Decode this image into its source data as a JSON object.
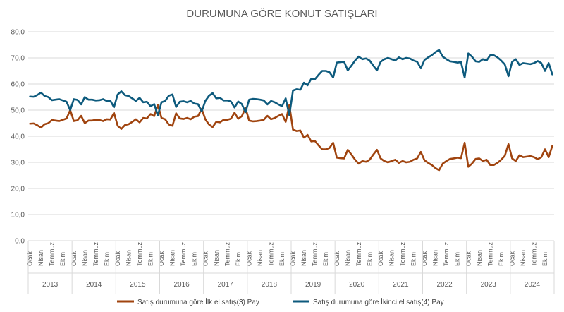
{
  "chart_data": {
    "type": "line",
    "title": "DURUMUNA GÖRE KONUT SATIŞLARI",
    "ylim": [
      0,
      80
    ],
    "yticks": [
      "0,0",
      "10,0",
      "20,0",
      "30,0",
      "40,0",
      "50,0",
      "60,0",
      "70,0",
      "80,0"
    ],
    "years": [
      "2013",
      "2014",
      "2015",
      "2016",
      "2017",
      "2018",
      "2019",
      "2020",
      "2021",
      "2022",
      "2023",
      "2024"
    ],
    "month_labels": [
      "Ocak",
      "Nisan",
      "Temmuz",
      "Ekim"
    ],
    "month_label_offsets": [
      0,
      3,
      6,
      9
    ],
    "grid": true,
    "legend_position": "bottom",
    "series": [
      {
        "name": "Satış durumuna göre İlk el satış(3) Pay",
        "color": "#a0440f",
        "values": [
          44.8,
          44.9,
          44.2,
          43.3,
          44.6,
          45.0,
          46.2,
          46.0,
          45.8,
          46.3,
          46.8,
          50.0,
          45.8,
          46.1,
          47.8,
          45.0,
          46.0,
          46.0,
          46.3,
          46.2,
          45.8,
          46.5,
          46.4,
          48.9,
          44.0,
          42.8,
          44.3,
          44.6,
          45.5,
          46.5,
          45.3,
          47.0,
          46.8,
          48.5,
          47.7,
          52.0,
          47.0,
          46.5,
          44.5,
          44.0,
          48.8,
          46.8,
          46.6,
          47.0,
          46.5,
          47.5,
          47.7,
          50.5,
          46.5,
          44.5,
          43.5,
          45.5,
          45.3,
          46.3,
          46.3,
          46.7,
          49.0,
          46.7,
          47.7,
          50.8,
          46.0,
          45.7,
          45.8,
          46.0,
          46.3,
          47.8,
          46.5,
          47.0,
          47.8,
          48.5,
          45.5,
          52.0,
          42.5,
          42.0,
          42.2,
          39.5,
          40.5,
          38.0,
          38.2,
          36.5,
          35.0,
          35.0,
          35.5,
          37.5,
          31.8,
          31.6,
          31.5,
          34.8,
          33.0,
          31.0,
          29.5,
          30.5,
          30.2,
          31.0,
          33.0,
          34.8,
          31.5,
          30.5,
          30.0,
          30.5,
          31.0,
          29.8,
          30.5,
          30.0,
          30.2,
          31.0,
          31.5,
          34.0,
          30.8,
          29.8,
          29.0,
          27.8,
          27.0,
          29.5,
          30.5,
          31.3,
          31.5,
          31.8,
          31.6,
          37.5,
          28.3,
          29.5,
          31.3,
          31.5,
          30.5,
          31.0,
          29.0,
          29.0,
          29.8,
          31.0,
          32.5,
          37.0,
          31.5,
          30.5,
          32.7,
          32.0,
          32.2,
          32.4,
          32.0,
          31.2,
          32.0,
          35.0,
          32.0,
          36.3
        ]
      },
      {
        "name": "Satış durumuna göre İkinci el satış(4) Pay",
        "color": "#0d5a7d",
        "values": [
          55.2,
          55.1,
          55.8,
          56.7,
          55.4,
          55.0,
          53.8,
          54.0,
          54.2,
          53.7,
          53.2,
          50.0,
          54.2,
          53.9,
          52.2,
          55.0,
          54.0,
          54.0,
          53.7,
          53.8,
          54.2,
          53.5,
          53.6,
          51.1,
          56.0,
          57.2,
          55.7,
          55.4,
          54.5,
          53.5,
          54.7,
          53.0,
          53.2,
          51.5,
          52.3,
          48.0,
          53.0,
          53.5,
          55.5,
          56.0,
          51.2,
          53.2,
          53.4,
          53.0,
          53.5,
          52.5,
          52.3,
          49.5,
          53.5,
          55.5,
          56.5,
          54.5,
          54.7,
          53.7,
          53.7,
          53.3,
          51.0,
          53.3,
          52.3,
          49.2,
          54.0,
          54.3,
          54.2,
          54.0,
          53.7,
          52.2,
          53.5,
          53.0,
          52.2,
          51.5,
          54.5,
          48.0,
          57.5,
          58.0,
          57.8,
          60.5,
          59.5,
          62.0,
          61.8,
          63.5,
          65.0,
          65.0,
          64.5,
          62.5,
          68.2,
          68.4,
          68.5,
          65.2,
          67.0,
          69.0,
          70.5,
          69.5,
          69.8,
          69.0,
          67.0,
          65.2,
          68.5,
          69.5,
          70.0,
          69.5,
          69.0,
          70.2,
          69.5,
          70.0,
          69.8,
          69.0,
          68.5,
          66.0,
          69.2,
          70.2,
          71.0,
          72.2,
          73.0,
          70.5,
          69.5,
          68.7,
          68.5,
          68.2,
          68.4,
          62.5,
          71.7,
          70.5,
          68.7,
          68.5,
          69.5,
          69.0,
          71.0,
          71.0,
          70.2,
          69.0,
          67.5,
          63.0,
          68.5,
          69.5,
          67.3,
          68.0,
          67.8,
          67.6,
          68.0,
          68.8,
          68.0,
          65.0,
          68.0,
          63.7
        ]
      }
    ]
  }
}
